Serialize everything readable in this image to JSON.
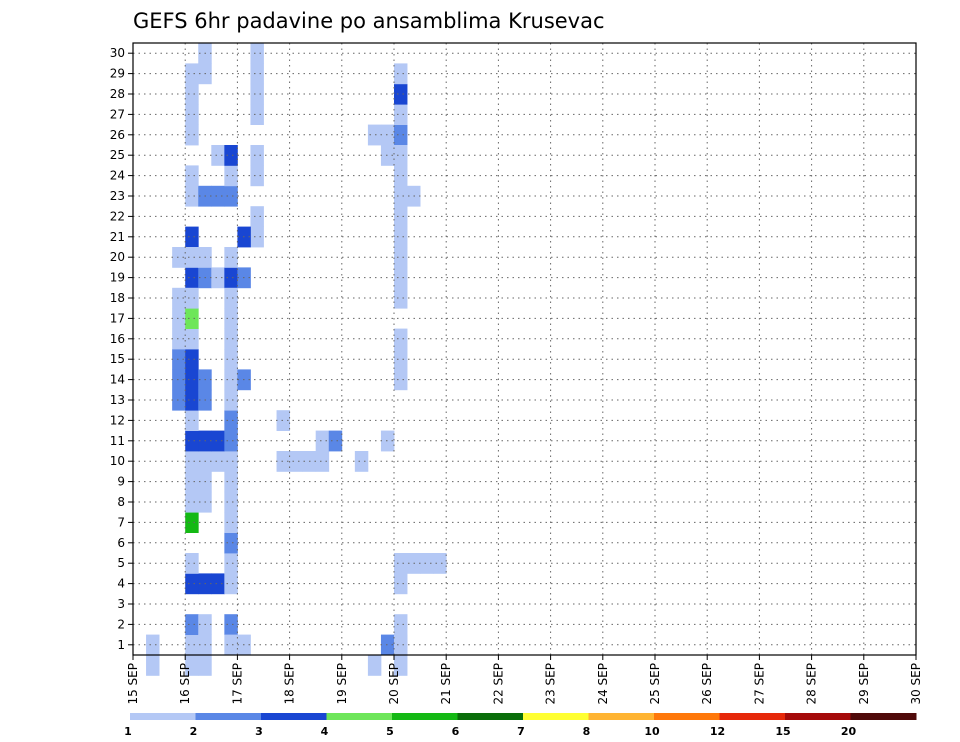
{
  "chart_data": {
    "type": "heatmap",
    "title": "GEFS 6hr padavine po ansamblima Krusevac",
    "x_tick_labels": [
      "15 SEP",
      "16 SEP",
      "17 SEP",
      "18 SEP",
      "19 SEP",
      "20 SEP",
      "21 SEP",
      "22 SEP",
      "23 SEP",
      "24 SEP",
      "25 SEP",
      "26 SEP",
      "27 SEP",
      "28 SEP",
      "29 SEP",
      "30 SEP"
    ],
    "xlim": [
      0,
      60
    ],
    "ylim": [
      0,
      30
    ],
    "y_ticks": [
      1,
      2,
      3,
      4,
      5,
      6,
      7,
      8,
      9,
      10,
      11,
      12,
      13,
      14,
      15,
      16,
      17,
      18,
      19,
      20,
      21,
      22,
      23,
      24,
      25,
      26,
      27,
      28,
      29,
      30
    ],
    "grid": true,
    "colorbar": {
      "position": "bottom",
      "bounds": [
        "1",
        "2",
        "3",
        "4",
        "5",
        "6",
        "7",
        "8",
        "10",
        "12",
        "15",
        "20"
      ],
      "colors": [
        "#b4c8f5",
        "#5a87e6",
        "#1946d2",
        "#6ee65a",
        "#14b914",
        "#0a6e0a",
        "#ffff32",
        "#ffb432",
        "#ff780a",
        "#e6280a",
        "#a50a0a",
        "#500a0a"
      ]
    },
    "cells": [
      {
        "x": 1,
        "y": 0,
        "v": 0
      },
      {
        "x": 1,
        "y": -1,
        "v": 0
      },
      {
        "x": 4,
        "y": 0,
        "v": 0
      },
      {
        "x": 4,
        "y": -1,
        "v": 0
      },
      {
        "x": 5,
        "y": -1,
        "v": 0
      },
      {
        "x": 4,
        "y": 1,
        "v": 1
      },
      {
        "x": 5,
        "y": 1,
        "v": 0
      },
      {
        "x": 5,
        "y": 0,
        "v": 0
      },
      {
        "x": 7,
        "y": 1,
        "v": 1
      },
      {
        "x": 7,
        "y": 0,
        "v": 0
      },
      {
        "x": 8,
        "y": 0,
        "v": 0
      },
      {
        "x": 4,
        "y": 3,
        "v": 2
      },
      {
        "x": 5,
        "y": 3,
        "v": 2
      },
      {
        "x": 6,
        "y": 3,
        "v": 2
      },
      {
        "x": 7,
        "y": 3,
        "v": 0
      },
      {
        "x": 4,
        "y": 4,
        "v": 0
      },
      {
        "x": 7,
        "y": 4,
        "v": 0
      },
      {
        "x": 7,
        "y": 5,
        "v": 1
      },
      {
        "x": 4,
        "y": 6,
        "v": 4
      },
      {
        "x": 7,
        "y": 6,
        "v": 0
      },
      {
        "x": 4,
        "y": 7,
        "v": 0
      },
      {
        "x": 5,
        "y": 7,
        "v": 0
      },
      {
        "x": 7,
        "y": 7,
        "v": 0
      },
      {
        "x": 4,
        "y": 8,
        "v": 0
      },
      {
        "x": 5,
        "y": 8,
        "v": 0
      },
      {
        "x": 7,
        "y": 8,
        "v": 0
      },
      {
        "x": 4,
        "y": 9,
        "v": 0
      },
      {
        "x": 5,
        "y": 9,
        "v": 0
      },
      {
        "x": 6,
        "y": 9,
        "v": 0
      },
      {
        "x": 7,
        "y": 9,
        "v": 0
      },
      {
        "x": 4,
        "y": 10,
        "v": 2
      },
      {
        "x": 5,
        "y": 10,
        "v": 2
      },
      {
        "x": 6,
        "y": 10,
        "v": 2
      },
      {
        "x": 7,
        "y": 10,
        "v": 1
      },
      {
        "x": 4,
        "y": 11,
        "v": 0
      },
      {
        "x": 7,
        "y": 11,
        "v": 1
      },
      {
        "x": 3,
        "y": 12,
        "v": 1
      },
      {
        "x": 4,
        "y": 12,
        "v": 2
      },
      {
        "x": 7,
        "y": 12,
        "v": 0
      },
      {
        "x": 3,
        "y": 13,
        "v": 1
      },
      {
        "x": 4,
        "y": 13,
        "v": 2
      },
      {
        "x": 7,
        "y": 13,
        "v": 0
      },
      {
        "x": 3,
        "y": 14,
        "v": 1
      },
      {
        "x": 4,
        "y": 14,
        "v": 2
      },
      {
        "x": 7,
        "y": 14,
        "v": 0
      },
      {
        "x": 4,
        "y": 18,
        "v": 2
      },
      {
        "x": 5,
        "y": 18,
        "v": 1
      },
      {
        "x": 6,
        "y": 18,
        "v": 0
      },
      {
        "x": 7,
        "y": 18,
        "v": 2
      },
      {
        "x": 8,
        "y": 18,
        "v": 1
      },
      {
        "x": 4,
        "y": 20,
        "v": 2
      },
      {
        "x": 4,
        "y": 22,
        "v": 0
      },
      {
        "x": 5,
        "y": 22,
        "v": 1
      },
      {
        "x": 6,
        "y": 22,
        "v": 1
      },
      {
        "x": 7,
        "y": 22,
        "v": 1
      },
      {
        "x": 4,
        "y": 23,
        "v": 0
      },
      {
        "x": 7,
        "y": 23,
        "v": 0
      },
      {
        "x": 6,
        "y": 24,
        "v": 0
      },
      {
        "x": 7,
        "y": 24,
        "v": 2
      },
      {
        "x": 4,
        "y": 25,
        "v": 0
      },
      {
        "x": 4,
        "y": 26,
        "v": 0
      },
      {
        "x": 4,
        "y": 27,
        "v": 0
      },
      {
        "x": 4,
        "y": 28,
        "v": 0
      },
      {
        "x": 5,
        "y": 28,
        "v": 0
      },
      {
        "x": 5,
        "y": 29,
        "v": 0
      },
      {
        "x": 9,
        "y": 21,
        "v": 0
      },
      {
        "x": 9,
        "y": 20,
        "v": 0
      },
      {
        "x": 9,
        "y": 23,
        "v": 0
      },
      {
        "x": 9,
        "y": 24,
        "v": 0
      },
      {
        "x": 9,
        "y": 26,
        "v": 0
      },
      {
        "x": 9,
        "y": 27,
        "v": 0
      },
      {
        "x": 9,
        "y": 28,
        "v": 0
      },
      {
        "x": 9,
        "y": 29,
        "v": 0
      },
      {
        "x": 3,
        "y": 16,
        "v": 0
      },
      {
        "x": 3,
        "y": 15,
        "v": 0
      },
      {
        "x": 4,
        "y": 15,
        "v": 0
      },
      {
        "x": 4,
        "y": 16,
        "v": 3
      },
      {
        "x": 3,
        "y": 17,
        "v": 0
      },
      {
        "x": 4,
        "y": 17,
        "v": 0
      },
      {
        "x": 4,
        "y": 19,
        "v": 0
      },
      {
        "x": 5,
        "y": 19,
        "v": 0
      },
      {
        "x": 3,
        "y": 19,
        "v": 0
      },
      {
        "x": 5,
        "y": 12,
        "v": 1
      },
      {
        "x": 5,
        "y": 13,
        "v": 1
      },
      {
        "x": 7,
        "y": 15,
        "v": 0
      },
      {
        "x": 7,
        "y": 16,
        "v": 0
      },
      {
        "x": 7,
        "y": 17,
        "v": 0
      },
      {
        "x": 8,
        "y": 13,
        "v": 1
      },
      {
        "x": 7,
        "y": 19,
        "v": 0
      },
      {
        "x": 8,
        "y": 20,
        "v": 2
      },
      {
        "x": 11,
        "y": 11,
        "v": 0
      },
      {
        "x": 11,
        "y": 9,
        "v": 0
      },
      {
        "x": 12,
        "y": 9,
        "v": 0
      },
      {
        "x": 13,
        "y": 9,
        "v": 0
      },
      {
        "x": 14,
        "y": 9,
        "v": 0
      },
      {
        "x": 14,
        "y": 10,
        "v": 0
      },
      {
        "x": 15,
        "y": 10,
        "v": 1
      },
      {
        "x": 17,
        "y": 9,
        "v": 0
      },
      {
        "x": 18,
        "y": -1,
        "v": 0
      },
      {
        "x": 18,
        "y": 25,
        "v": 0
      },
      {
        "x": 19,
        "y": 25,
        "v": 0
      },
      {
        "x": 20,
        "y": 25,
        "v": 1
      },
      {
        "x": 20,
        "y": 26,
        "v": 0
      },
      {
        "x": 20,
        "y": 24,
        "v": 0
      },
      {
        "x": 20,
        "y": 23,
        "v": 0
      },
      {
        "x": 20,
        "y": 22,
        "v": 0
      },
      {
        "x": 20,
        "y": 21,
        "v": 0
      },
      {
        "x": 20,
        "y": 20,
        "v": 0
      },
      {
        "x": 20,
        "y": 19,
        "v": 0
      },
      {
        "x": 20,
        "y": 18,
        "v": 0
      },
      {
        "x": 20,
        "y": 17,
        "v": 0
      },
      {
        "x": 20,
        "y": 15,
        "v": 0
      },
      {
        "x": 20,
        "y": 14,
        "v": 0
      },
      {
        "x": 20,
        "y": 13,
        "v": 0
      },
      {
        "x": 20,
        "y": 4,
        "v": 0
      },
      {
        "x": 20,
        "y": 3,
        "v": 0
      },
      {
        "x": 20,
        "y": 1,
        "v": 0
      },
      {
        "x": 20,
        "y": 0,
        "v": 0
      },
      {
        "x": 20,
        "y": -1,
        "v": 0
      },
      {
        "x": 21,
        "y": 4,
        "v": 0
      },
      {
        "x": 22,
        "y": 4,
        "v": 0
      },
      {
        "x": 23,
        "y": 4,
        "v": 0
      },
      {
        "x": 21,
        "y": 22,
        "v": 0
      },
      {
        "x": 20,
        "y": 26,
        "v": 0
      },
      {
        "x": 19,
        "y": 24,
        "v": 0
      },
      {
        "x": 20,
        "y": 26,
        "v": 0
      },
      {
        "x": 19,
        "y": 0,
        "v": 1
      },
      {
        "x": 20,
        "y": 0,
        "v": 0
      },
      {
        "x": 19,
        "y": 10,
        "v": 0
      },
      {
        "x": 20,
        "y": 27,
        "v": 2
      },
      {
        "x": 20,
        "y": 28,
        "v": 0
      }
    ]
  }
}
